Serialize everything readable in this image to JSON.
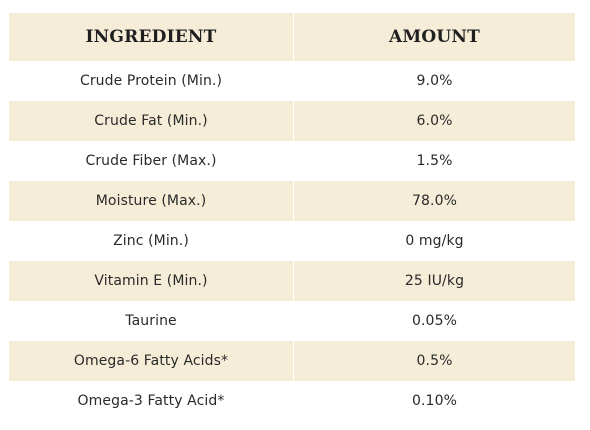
{
  "table": {
    "headers": {
      "ingredient": "INGREDIENT",
      "amount": "AMOUNT"
    },
    "rows": [
      {
        "ingredient": "Crude Protein (Min.)",
        "amount": "9.0%"
      },
      {
        "ingredient": "Crude Fat (Min.)",
        "amount": "6.0%"
      },
      {
        "ingredient": "Crude Fiber (Max.)",
        "amount": "1.5%"
      },
      {
        "ingredient": "Moisture (Max.)",
        "amount": "78.0%"
      },
      {
        "ingredient": "Zinc (Min.)",
        "amount": "0 mg/kg"
      },
      {
        "ingredient": "Vitamin E (Min.)",
        "amount": "25 IU/kg"
      },
      {
        "ingredient": "Taurine",
        "amount": "0.05%"
      },
      {
        "ingredient": "Omega-6 Fatty Acids*",
        "amount": "0.5%"
      },
      {
        "ingredient": "Omega-3 Fatty Acid*",
        "amount": "0.10%"
      }
    ]
  },
  "colors": {
    "shaded_row": "#f6edd9",
    "text": "#2a2a2a"
  }
}
